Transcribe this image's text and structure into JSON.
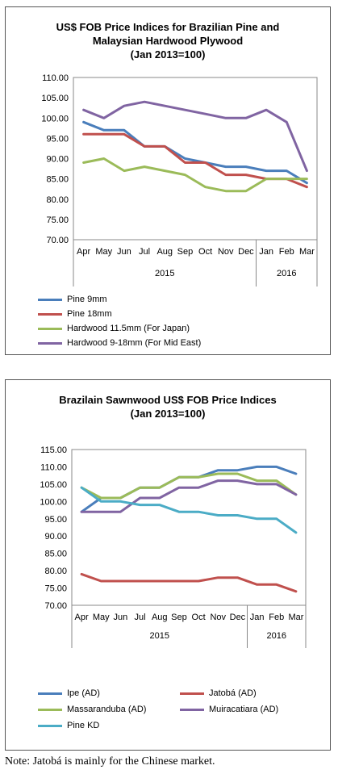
{
  "chart_data": [
    {
      "type": "line",
      "title_lines": [
        "US$ FOB Price Indices for Brazilian Pine and",
        "Malaysian Hardwood Plywood",
        "(Jan 2013=100)"
      ],
      "categories": [
        "Apr",
        "May",
        "Jun",
        "Jul",
        "Aug",
        "Sep",
        "Oct",
        "Nov",
        "Dec",
        "Jan",
        "Feb",
        "Mar"
      ],
      "year_labels": [
        {
          "label": "2015",
          "from": 0,
          "to": 8
        },
        {
          "label": "2016",
          "from": 9,
          "to": 11
        }
      ],
      "ylim": [
        70,
        110
      ],
      "yticks": [
        "110.00",
        "105.00",
        "100.00",
        "95.00",
        "90.00",
        "85.00",
        "80.00",
        "75.00",
        "70.00"
      ],
      "series": [
        {
          "name": "Pine 9mm",
          "color": "#4a7ebb",
          "values": [
            99,
            97,
            97,
            93,
            93,
            90,
            89,
            88,
            88,
            87,
            87,
            84
          ]
        },
        {
          "name": "Pine 18mm",
          "color": "#c0504d",
          "values": [
            96,
            96,
            96,
            93,
            93,
            89,
            89,
            86,
            86,
            85,
            85,
            83
          ]
        },
        {
          "name": "Hardwood 11.5mm (For Japan)",
          "color": "#9bbb59",
          "values": [
            89,
            90,
            87,
            88,
            87,
            86,
            83,
            82,
            82,
            85,
            85,
            85
          ]
        },
        {
          "name": "Hardwood 9-18mm (For Mid East)",
          "color": "#8064a2",
          "values": [
            102,
            100,
            103,
            104,
            103,
            102,
            101,
            100,
            100,
            102,
            99,
            87
          ]
        }
      ]
    },
    {
      "type": "line",
      "title_lines": [
        "Brazilain Sawnwood US$ FOB Price Indices",
        "(Jan 2013=100)"
      ],
      "categories": [
        "Apr",
        "May",
        "Jun",
        "Jul",
        "Aug",
        "Sep",
        "Oct",
        "Nov",
        "Dec",
        "Jan",
        "Feb",
        "Mar"
      ],
      "year_labels": [
        {
          "label": "2015",
          "from": 0,
          "to": 8
        },
        {
          "label": "2016",
          "from": 9,
          "to": 11
        }
      ],
      "ylim": [
        70,
        115
      ],
      "yticks": [
        "115.00",
        "110.00",
        "105.00",
        "100.00",
        "95.00",
        "90.00",
        "85.00",
        "80.00",
        "75.00",
        "70.00"
      ],
      "series": [
        {
          "name": "Ipe (AD)",
          "color": "#4a7ebb",
          "values": [
            97,
            101,
            101,
            104,
            104,
            107,
            107,
            109,
            109,
            110,
            110,
            108
          ]
        },
        {
          "name": "Jatobá (AD)",
          "color": "#c0504d",
          "values": [
            79,
            77,
            77,
            77,
            77,
            77,
            77,
            78,
            78,
            76,
            76,
            74
          ]
        },
        {
          "name": "Massaranduba (AD)",
          "color": "#9bbb59",
          "values": [
            104,
            101,
            101,
            104,
            104,
            107,
            107,
            108,
            108,
            106,
            106,
            102
          ]
        },
        {
          "name": "Muiracatiara (AD)",
          "color": "#8064a2",
          "values": [
            97,
            97,
            97,
            101,
            101,
            104,
            104,
            106,
            106,
            105,
            105,
            102
          ]
        },
        {
          "name": "Pine KD",
          "color": "#4bacc6",
          "values": [
            104,
            100,
            100,
            99,
            99,
            97,
            97,
            96,
            96,
            95,
            95,
            91
          ]
        }
      ]
    }
  ],
  "note": "Note: Jatobá is mainly for the Chinese market."
}
